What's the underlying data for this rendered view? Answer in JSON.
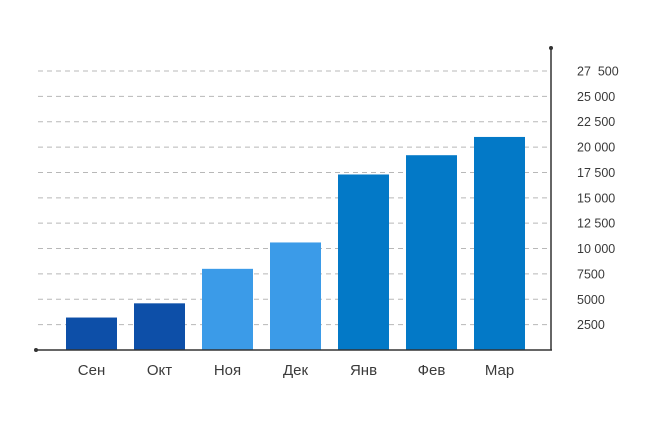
{
  "chart_data": {
    "type": "bar",
    "title": "",
    "xlabel": "",
    "ylabel": "",
    "categories": [
      "Сен",
      "Окт",
      "Ноя",
      "Дек",
      "Янв",
      "Фев",
      "Мар"
    ],
    "values": [
      3200,
      4600,
      8000,
      10600,
      17300,
      19200,
      21000
    ],
    "bar_colors": [
      "#0d4fa8",
      "#0d4fa8",
      "#3b9be8",
      "#3b9be8",
      "#0379c7",
      "#0379c7",
      "#0379c7"
    ],
    "ylim": [
      0,
      27500
    ],
    "yticks": [
      2500,
      5000,
      7500,
      10000,
      12500,
      15000,
      17500,
      20000,
      22500,
      25000,
      27500
    ],
    "ytick_labels": [
      "2500",
      "5000",
      "7500",
      "10 000",
      "12 500",
      "15 000",
      "17 500",
      "20 000",
      "22 500",
      "25 000",
      "27  500"
    ],
    "y_axis_position": "right",
    "grid": true
  }
}
